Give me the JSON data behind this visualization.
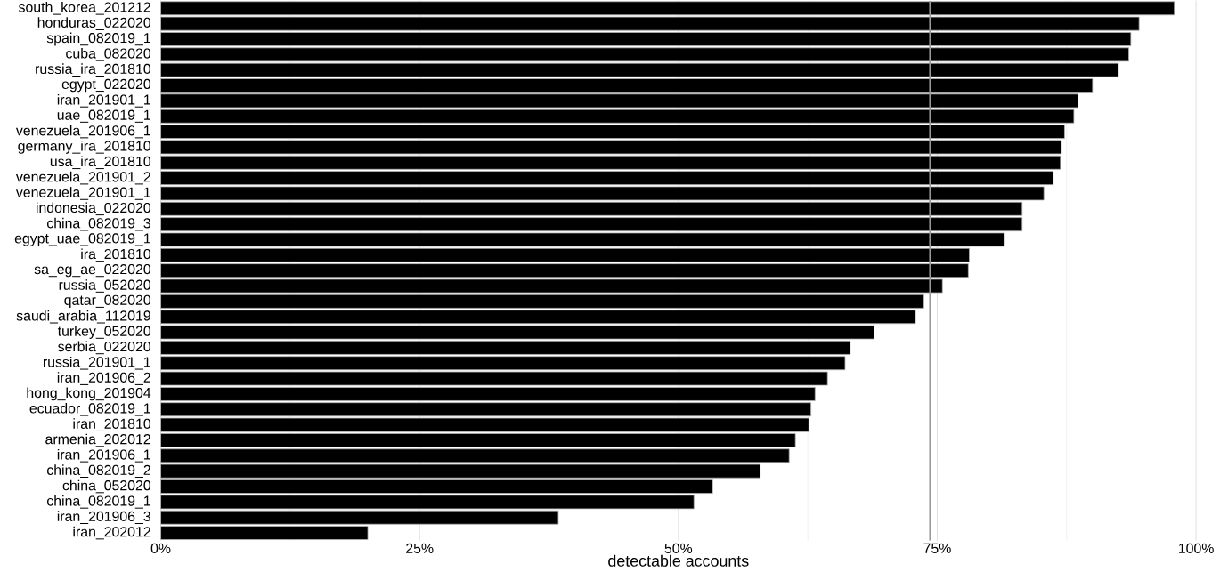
{
  "chart_data": {
    "type": "bar",
    "orientation": "horizontal",
    "xlabel": "detectable accounts",
    "categories": [
      "south_korea_201212",
      "honduras_022020",
      "spain_082019_1",
      "cuba_082020",
      "russia_ira_201810",
      "egypt_022020",
      "iran_201901_1",
      "uae_082019_1",
      "venezuela_201906_1",
      "germany_ira_201810",
      "usa_ira_201810",
      "venezuela_201901_2",
      "venezuela_201901_1",
      "indonesia_022020",
      "china_082019_3",
      "egypt_uae_082019_1",
      "ira_201810",
      "sa_eg_ae_022020",
      "russia_052020",
      "qatar_082020",
      "saudi_arabia_112019",
      "turkey_052020",
      "serbia_022020",
      "russia_201901_1",
      "iran_201906_2",
      "hong_kong_201904",
      "ecuador_082019_1",
      "iran_201810",
      "armenia_202012",
      "iran_201906_1",
      "china_082019_2",
      "china_052020",
      "china_082019_1",
      "iran_201906_3",
      "iran_202012"
    ],
    "values": [
      97.9,
      94.5,
      93.7,
      93.5,
      92.5,
      90.0,
      88.6,
      88.2,
      87.3,
      87.0,
      86.9,
      86.2,
      85.3,
      83.2,
      83.2,
      81.5,
      78.1,
      78.0,
      75.5,
      73.7,
      72.9,
      68.9,
      66.6,
      66.1,
      64.4,
      63.2,
      62.8,
      62.6,
      61.3,
      60.7,
      57.9,
      53.3,
      51.5,
      38.4,
      20.0
    ],
    "color": "#000000",
    "xlim": [
      0,
      100
    ],
    "xticks": [
      {
        "value": 0,
        "label": "0%"
      },
      {
        "value": 25,
        "label": "25%"
      },
      {
        "value": 50,
        "label": "50%"
      },
      {
        "value": 75,
        "label": "75%"
      },
      {
        "value": 100,
        "label": "100%"
      }
    ],
    "grid": "x",
    "ref_lines": [
      {
        "axis": "x",
        "value": 74.3,
        "color": "#999999"
      }
    ]
  }
}
